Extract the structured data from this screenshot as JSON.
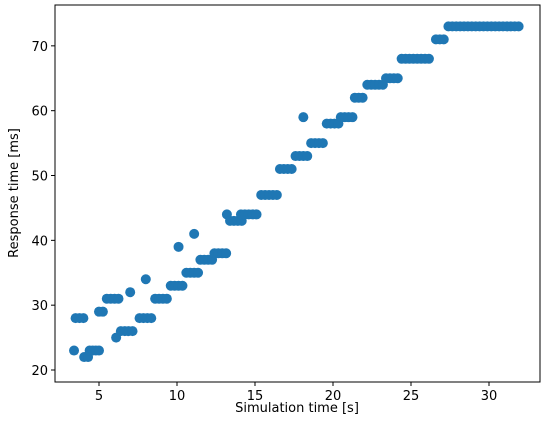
{
  "chart_data": {
    "type": "scatter",
    "x_label": "Simulation time [s]",
    "y_label": "Response time [ms]",
    "xlim": [
      2.18,
      33.27
    ],
    "ylim": [
      18.15,
      76.3
    ],
    "xticks": [
      5,
      10,
      15,
      20,
      25,
      30
    ],
    "yticks": [
      20,
      30,
      40,
      50,
      60,
      70
    ],
    "grid": false,
    "series": [
      {
        "color": "#1f77b4",
        "x": [
          3.4,
          3.5,
          3.75,
          4.0,
          4.05,
          4.3,
          4.4,
          4.6,
          4.8,
          5.0,
          5.0,
          5.25,
          5.5,
          5.75,
          6.0,
          6.25,
          6.1,
          6.4,
          6.65,
          6.9,
          7.15,
          7.0,
          7.6,
          7.85,
          8.1,
          8.35,
          8.0,
          8.6,
          8.85,
          9.1,
          9.35,
          9.6,
          9.85,
          10.1,
          10.35,
          10.1,
          10.6,
          10.85,
          11.1,
          11.35,
          11.1,
          11.5,
          11.75,
          12.0,
          12.25,
          12.4,
          12.65,
          12.9,
          13.15,
          13.2,
          13.4,
          13.65,
          13.9,
          14.15,
          14.1,
          14.35,
          14.6,
          14.85,
          15.1,
          15.4,
          15.65,
          15.9,
          16.15,
          16.4,
          16.6,
          16.85,
          17.1,
          17.35,
          17.6,
          17.85,
          18.1,
          18.35,
          18.1,
          18.6,
          18.85,
          19.1,
          19.35,
          19.6,
          19.85,
          20.1,
          20.35,
          20.5,
          20.75,
          21.0,
          21.25,
          21.4,
          21.65,
          21.9,
          22.2,
          22.45,
          22.7,
          22.95,
          23.2,
          23.4,
          23.65,
          23.9,
          24.15,
          24.4,
          24.65,
          24.9,
          25.15,
          25.4,
          25.65,
          25.9,
          26.15,
          26.6,
          26.85,
          27.1,
          27.4,
          27.65,
          27.9,
          28.15,
          28.4,
          28.65,
          28.9,
          29.15,
          29.4,
          29.65,
          29.9,
          30.15,
          30.4,
          30.65,
          30.9,
          31.15,
          31.4,
          31.65,
          31.9
        ],
        "values": [
          23,
          28,
          28,
          28,
          22,
          22,
          23,
          23,
          23,
          23,
          29,
          29,
          31,
          31,
          31,
          31,
          25,
          26,
          26,
          26,
          26,
          32,
          28,
          28,
          28,
          28,
          34,
          31,
          31,
          31,
          31,
          33,
          33,
          33,
          33,
          39,
          35,
          35,
          35,
          35,
          41,
          37,
          37,
          37,
          37,
          38,
          38,
          38,
          38,
          44,
          43,
          43,
          43,
          43,
          44,
          44,
          44,
          44,
          44,
          47,
          47,
          47,
          47,
          47,
          51,
          51,
          51,
          51,
          53,
          53,
          53,
          53,
          59,
          55,
          55,
          55,
          55,
          58,
          58,
          58,
          58,
          59,
          59,
          59,
          59,
          62,
          62,
          62,
          64,
          64,
          64,
          64,
          64,
          65,
          65,
          65,
          65,
          68,
          68,
          68,
          68,
          68,
          68,
          68,
          68,
          71,
          71,
          71,
          73,
          73,
          73,
          73,
          73,
          73,
          73,
          73,
          73,
          73,
          73,
          73,
          73,
          73,
          73,
          73,
          73,
          73,
          73
        ]
      }
    ]
  }
}
